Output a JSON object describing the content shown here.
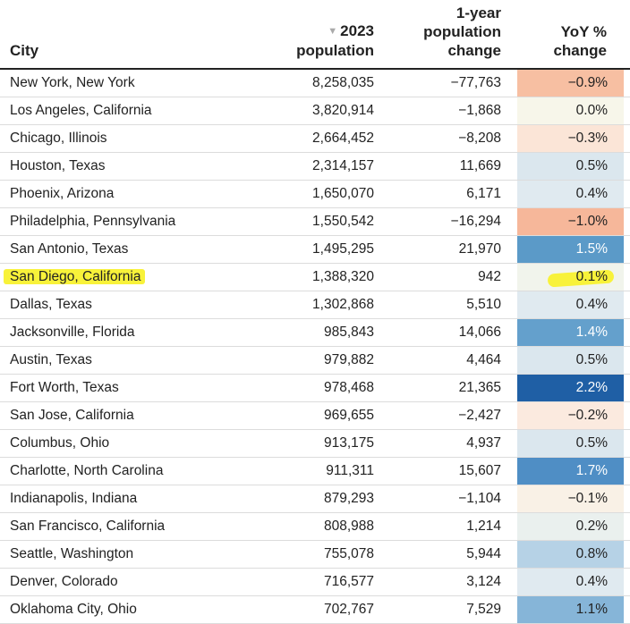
{
  "headers": {
    "city": "City",
    "pop_line1": "2023",
    "pop_line2": "population",
    "chg_line1": "1-year",
    "chg_line2": "population",
    "chg_line3": "change",
    "yoy_line1": "YoY %",
    "yoy_line2": "change",
    "sort_icon": "▼"
  },
  "rows": [
    {
      "city": "New York, New York",
      "pop": "8,258,035",
      "chg": "−77,763",
      "yoy": "−0.9%",
      "bg": "#f7bfa2",
      "fg": "#222222"
    },
    {
      "city": "Los Angeles, California",
      "pop": "3,820,914",
      "chg": "−1,868",
      "yoy": "0.0%",
      "bg": "#f7f6ea",
      "fg": "#222222"
    },
    {
      "city": "Chicago, Illinois",
      "pop": "2,664,452",
      "chg": "−8,208",
      "yoy": "−0.3%",
      "bg": "#fbe5d7",
      "fg": "#222222"
    },
    {
      "city": "Houston, Texas",
      "pop": "2,314,157",
      "chg": "11,669",
      "yoy": "0.5%",
      "bg": "#dbe7ee",
      "fg": "#222222"
    },
    {
      "city": "Phoenix, Arizona",
      "pop": "1,650,070",
      "chg": "6,171",
      "yoy": "0.4%",
      "bg": "#e0eaf0",
      "fg": "#222222"
    },
    {
      "city": "Philadelphia, Pennsylvania",
      "pop": "1,550,542",
      "chg": "−16,294",
      "yoy": "−1.0%",
      "bg": "#f6b79a",
      "fg": "#222222"
    },
    {
      "city": "San Antonio, Texas",
      "pop": "1,495,295",
      "chg": "21,970",
      "yoy": "1.5%",
      "bg": "#5b9ac8",
      "fg": "#ffffff"
    },
    {
      "city": "San Diego, California",
      "pop": "1,388,320",
      "chg": "942",
      "yoy": "0.1%",
      "bg": "#f1f4ec",
      "fg": "#222222",
      "highlight": true
    },
    {
      "city": "Dallas, Texas",
      "pop": "1,302,868",
      "chg": "5,510",
      "yoy": "0.4%",
      "bg": "#e0eaf0",
      "fg": "#222222"
    },
    {
      "city": "Jacksonville, Florida",
      "pop": "985,843",
      "chg": "14,066",
      "yoy": "1.4%",
      "bg": "#64a0cc",
      "fg": "#ffffff"
    },
    {
      "city": "Austin, Texas",
      "pop": "979,882",
      "chg": "4,464",
      "yoy": "0.5%",
      "bg": "#dbe7ee",
      "fg": "#222222"
    },
    {
      "city": "Fort Worth, Texas",
      "pop": "978,468",
      "chg": "21,365",
      "yoy": "2.2%",
      "bg": "#1f5fa5",
      "fg": "#ffffff"
    },
    {
      "city": "San Jose, California",
      "pop": "969,655",
      "chg": "−2,427",
      "yoy": "−0.2%",
      "bg": "#fbeadf",
      "fg": "#222222"
    },
    {
      "city": "Columbus, Ohio",
      "pop": "913,175",
      "chg": "4,937",
      "yoy": "0.5%",
      "bg": "#dbe7ee",
      "fg": "#222222"
    },
    {
      "city": "Charlotte, North Carolina",
      "pop": "911,311",
      "chg": "15,607",
      "yoy": "1.7%",
      "bg": "#4f8ec5",
      "fg": "#ffffff"
    },
    {
      "city": "Indianapolis, Indiana",
      "pop": "879,293",
      "chg": "−1,104",
      "yoy": "−0.1%",
      "bg": "#f9f1e6",
      "fg": "#222222"
    },
    {
      "city": "San Francisco, California",
      "pop": "808,988",
      "chg": "1,214",
      "yoy": "0.2%",
      "bg": "#eaf0ee",
      "fg": "#222222"
    },
    {
      "city": "Seattle, Washington",
      "pop": "755,078",
      "chg": "5,944",
      "yoy": "0.8%",
      "bg": "#b6d2e6",
      "fg": "#222222"
    },
    {
      "city": "Denver, Colorado",
      "pop": "716,577",
      "chg": "3,124",
      "yoy": "0.4%",
      "bg": "#e0eaf0",
      "fg": "#222222"
    },
    {
      "city": "Oklahoma City, Ohio",
      "pop": "702,767",
      "chg": "7,529",
      "yoy": "1.1%",
      "bg": "#86b5d8",
      "fg": "#222222"
    }
  ]
}
